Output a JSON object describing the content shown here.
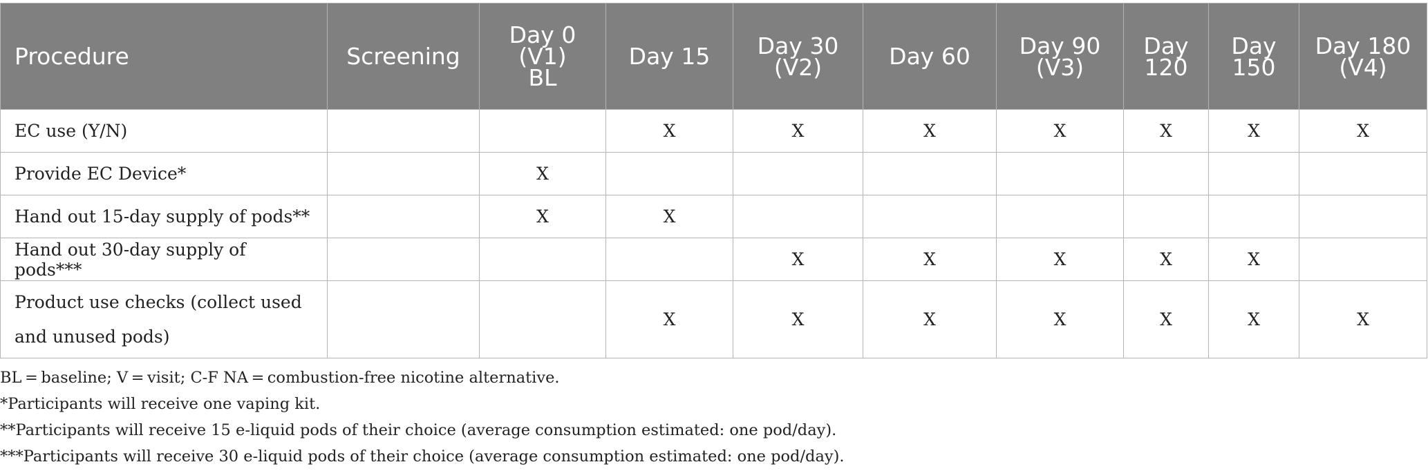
{
  "table": {
    "columns": [
      "Procedure",
      "Screening",
      "Day 0\n(V1)\nBL",
      "Day 15",
      "Day 30\n(V2)",
      "Day 60",
      "Day 90\n(V3)",
      "Day\n120",
      "Day\n150",
      "Day 180\n(V4)"
    ],
    "rows": [
      {
        "cells": [
          "EC use (Y/N)",
          "",
          "",
          "X",
          "X",
          "X",
          "X",
          "X",
          "X",
          "X"
        ]
      },
      {
        "cells": [
          "Provide EC Device*",
          "",
          "X",
          "",
          "",
          "",
          "",
          "",
          "",
          ""
        ]
      },
      {
        "cells": [
          "Hand out 15-day supply of pods**",
          "",
          "X",
          "X",
          "",
          "",
          "",
          "",
          "",
          ""
        ]
      },
      {
        "cells": [
          "Hand out 30-day supply of pods***",
          "",
          "",
          "",
          "X",
          "X",
          "X",
          "X",
          "X",
          ""
        ]
      },
      {
        "cells": [
          "Product use checks (collect used and unused pods)",
          "",
          "",
          "X",
          "X",
          "X",
          "X",
          "X",
          "X",
          "X"
        ]
      }
    ]
  },
  "footnotes": [
    "BL = baseline; V = visit; C-F NA = combustion-free nicotine alternative.",
    "*Participants will receive one vaping kit.",
    "**Participants will receive 15 e-liquid pods of their choice (average consumption estimated: one pod/day).",
    "***Participants will receive 30 e-liquid pods of their choice (average consumption estimated: one pod/day)."
  ]
}
